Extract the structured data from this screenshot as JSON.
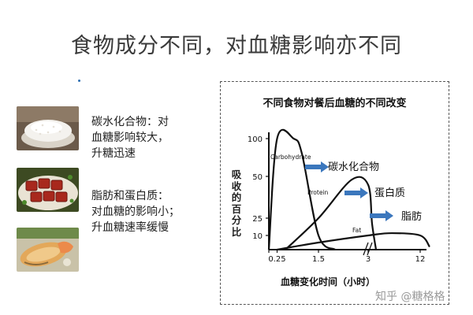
{
  "slide": {
    "title": "食物成分不同，对血糖影响亦不同",
    "items": [
      {
        "lines": [
          "碳水化合物：对",
          "血糖影响较大，",
          "升糖迅速"
        ]
      },
      {
        "lines": [
          "脂肪和蛋白质：",
          "对血糖的影响小；",
          "升血糖速率缓慢"
        ]
      }
    ]
  },
  "chart_data": {
    "type": "line",
    "title": "不同食物对餐后血糖的不同改变",
    "ylabel": "吸收的百分比",
    "xlabel": "血糖变化时间（小时）",
    "x_ticks": [
      "0",
      "0.25",
      "1.5",
      "3",
      "12"
    ],
    "y_ticks": [
      "100",
      "50",
      "25",
      "10"
    ],
    "series": [
      {
        "name": "Carbohydrate",
        "label": "碳水化合物",
        "x": [
          0,
          0.25,
          0.75,
          1.0,
          1.5,
          2.0
        ],
        "y": [
          0,
          100,
          100,
          80,
          10,
          0
        ]
      },
      {
        "name": "Protein",
        "label": "蛋白质",
        "x": [
          0.5,
          1.5,
          2.5,
          3,
          3.5,
          4
        ],
        "y": [
          0,
          25,
          48,
          45,
          20,
          0
        ]
      },
      {
        "name": "Fat",
        "label": "脂肪",
        "x": [
          0.25,
          1.5,
          3,
          6,
          12,
          14
        ],
        "y": [
          0,
          5,
          10,
          12,
          10,
          2
        ]
      }
    ]
  },
  "watermark": "知乎 @糖格格",
  "colors": {
    "accent": "#3b77bd",
    "bullet": "#2e6fb2",
    "curve": "#111111"
  }
}
